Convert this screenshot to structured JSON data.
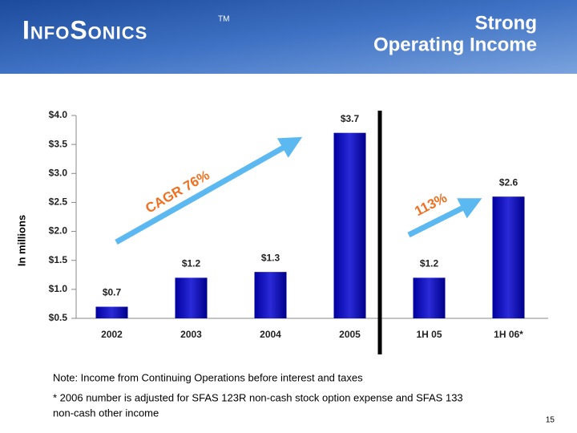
{
  "header": {
    "logo": "InfoSonics",
    "trademark": "TM",
    "title_lines": [
      "Strong",
      "Operating Income"
    ]
  },
  "chart_data": {
    "type": "bar",
    "categories": [
      "2002",
      "2003",
      "2004",
      "2005",
      "1H 05",
      "1H 06*"
    ],
    "values": [
      0.7,
      1.2,
      1.3,
      3.7,
      1.2,
      2.6
    ],
    "value_labels": [
      "$0.7",
      "$1.2",
      "$1.3",
      "$3.7",
      "$1.2",
      "$2.6"
    ],
    "color": "#0000a0",
    "y_label": "In millions",
    "ylim": [
      0.5,
      4.0
    ],
    "yticks": [
      {
        "value": 0.5,
        "label": "$0.5"
      },
      {
        "value": 1.0,
        "label": "$1.0"
      },
      {
        "value": 1.5,
        "label": "$1.5"
      },
      {
        "value": 2.0,
        "label": "$2.0"
      },
      {
        "value": 2.5,
        "label": "$2.5"
      },
      {
        "value": 3.0,
        "label": "$3.0"
      },
      {
        "value": 3.5,
        "label": "$3.5"
      },
      {
        "value": 4.0,
        "label": "$4.0"
      }
    ],
    "annotations": [
      "CAGR 76%",
      "113%"
    ]
  },
  "notes": [
    "Note: Income from Continuing Operations before interest and taxes",
    "* 2006 number is adjusted for SFAS 123R non-cash stock option expense and SFAS 133",
    "non-cash other income"
  ],
  "page_number": "15"
}
